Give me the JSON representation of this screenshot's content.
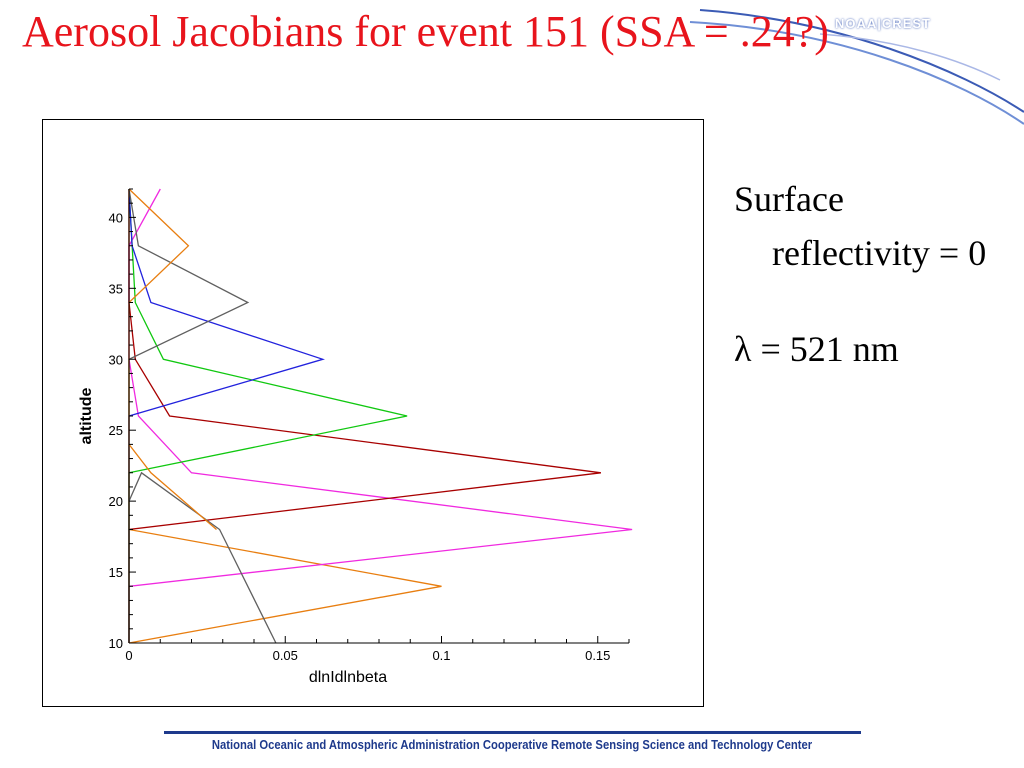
{
  "slide": {
    "title": "Aerosol Jacobians for event 151 (SSA = .24?)",
    "logo_text": "NOAA|CREST",
    "notes": [
      "Surface reflectivity = 0",
      "λ = 521 nm"
    ],
    "footer": "National Oceanic and Atmospheric Administration Cooperative Remote Sensing Science and Technology Center",
    "colors": {
      "title": "#e8141c",
      "footer": "#1e3a8c",
      "swoosh": "#3b5bb5"
    }
  },
  "chart_data": {
    "type": "line",
    "xlabel": "dlnIdlnbeta",
    "ylabel": "altitude",
    "xlim": [
      0,
      0.16
    ],
    "ylim": [
      10,
      42
    ],
    "x_ticks": [
      0,
      0.05,
      0.1,
      0.15
    ],
    "x_tick_labels": [
      "0",
      "0.05",
      "0.1",
      "0.15"
    ],
    "y_ticks": [
      10,
      15,
      20,
      25,
      30,
      35,
      40
    ],
    "y_tick_labels": [
      "10",
      "15",
      "20",
      "25",
      "30",
      "35",
      "40"
    ],
    "grid": false,
    "series": [
      {
        "color": "#e87e10",
        "points": [
          [
            0,
            10
          ],
          [
            0.1,
            14
          ],
          [
            0,
            18
          ],
          [
            0,
            42
          ]
        ]
      },
      {
        "color": "#f02ae0",
        "points": [
          [
            0,
            10
          ],
          [
            0,
            14
          ],
          [
            0.161,
            18
          ],
          [
            0.02,
            22
          ],
          [
            0.003,
            26
          ],
          [
            0,
            30
          ],
          [
            0,
            34
          ],
          [
            0,
            38
          ],
          [
            0.01,
            42
          ]
        ]
      },
      {
        "color": "#a80000",
        "points": [
          [
            0,
            10
          ],
          [
            0,
            18
          ],
          [
            0.151,
            22
          ],
          [
            0.013,
            26
          ],
          [
            0.002,
            30
          ],
          [
            0,
            34
          ],
          [
            0,
            42
          ]
        ]
      },
      {
        "color": "#10c810",
        "points": [
          [
            0,
            10
          ],
          [
            0,
            22
          ],
          [
            0.089,
            26
          ],
          [
            0.011,
            30
          ],
          [
            0.002,
            34
          ],
          [
            0,
            42
          ]
        ]
      },
      {
        "color": "#2222dd",
        "points": [
          [
            0,
            10
          ],
          [
            0,
            26
          ],
          [
            0.062,
            30
          ],
          [
            0.007,
            34
          ],
          [
            0.001,
            38
          ],
          [
            0,
            42
          ]
        ]
      },
      {
        "color": "#606060",
        "points": [
          [
            0,
            10
          ],
          [
            0,
            30
          ],
          [
            0.038,
            34
          ],
          [
            0.003,
            38
          ],
          [
            0,
            42
          ]
        ]
      },
      {
        "color": "#e87e10",
        "points": [
          [
            0,
            10
          ],
          [
            0,
            34
          ],
          [
            0.019,
            38
          ],
          [
            0,
            42
          ]
        ]
      },
      {
        "color": "#606060",
        "points": [
          [
            0,
            20
          ],
          [
            0.004,
            22
          ],
          [
            0.029,
            18
          ],
          [
            0.047,
            10
          ]
        ]
      },
      {
        "color": "#e87e10",
        "points": [
          [
            0,
            24
          ],
          [
            0.007,
            22
          ],
          [
            0.028,
            18
          ]
        ]
      }
    ]
  }
}
